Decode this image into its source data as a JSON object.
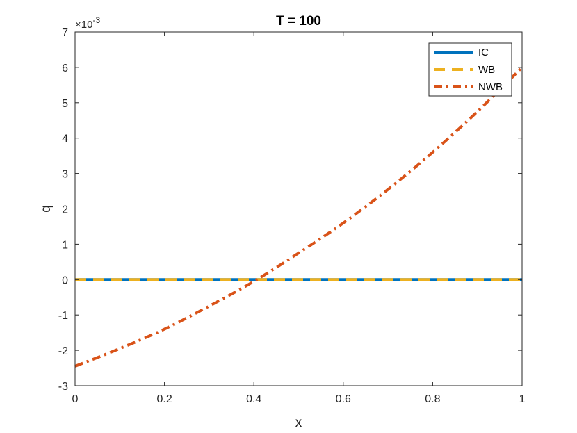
{
  "chart_data": {
    "type": "line",
    "title": "T = 100",
    "xlabel": "x",
    "ylabel": "q",
    "xlim": [
      0,
      1
    ],
    "ylim": [
      -3,
      7
    ],
    "y_exponent_label": "×10",
    "y_exponent_power": "-3",
    "xticks": [
      "0",
      "0.2",
      "0.4",
      "0.6",
      "0.8",
      "1"
    ],
    "yticks": [
      "-3",
      "-2",
      "-1",
      "0",
      "1",
      "2",
      "3",
      "4",
      "5",
      "6",
      "7"
    ],
    "grid": false,
    "legend_position": "top-right",
    "series": [
      {
        "name": "IC",
        "color": "#0072BD",
        "style": "solid",
        "x": [
          0,
          1
        ],
        "y": [
          0,
          0
        ]
      },
      {
        "name": "WB",
        "color": "#EDB120",
        "style": "dashed",
        "x": [
          0,
          1
        ],
        "y": [
          0,
          0
        ]
      },
      {
        "name": "NWB",
        "color": "#D95319",
        "style": "dash-dot",
        "x": [
          0,
          0.1,
          0.2,
          0.3,
          0.4,
          0.5,
          0.6,
          0.7,
          0.8,
          0.9,
          1.0
        ],
        "y": [
          -2.45,
          -1.95,
          -1.4,
          -0.75,
          -0.05,
          0.75,
          1.6,
          2.55,
          3.6,
          4.75,
          6.0
        ]
      }
    ]
  }
}
